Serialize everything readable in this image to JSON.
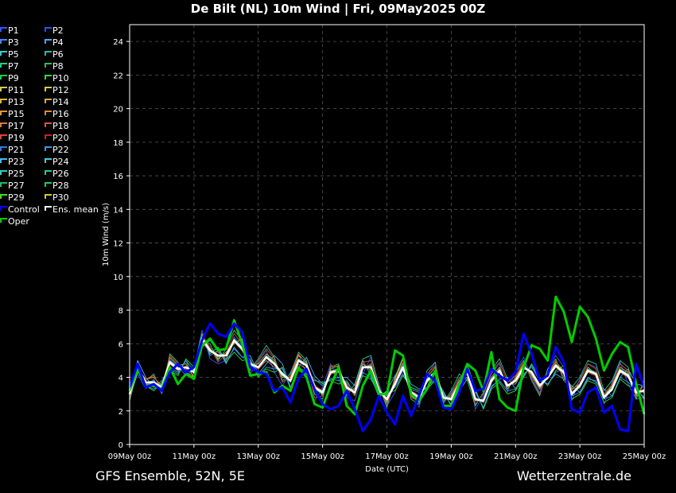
{
  "title": "De Bilt  (NL)  10m Wind | Fri, 09May2025 00Z",
  "footer": {
    "left": "GFS Ensemble, 52N, 5E",
    "right": "Wetterzentrale.de"
  },
  "colors": {
    "background": "#000000",
    "grid": "#555555",
    "control": "#0000ff",
    "oper": "#00cc00",
    "mean": "#ffffff"
  },
  "legend": [
    {
      "label": "P1",
      "color": "#3355ff"
    },
    {
      "label": "P2",
      "color": "#2255ff"
    },
    {
      "label": "P3",
      "color": "#4488ff"
    },
    {
      "label": "P4",
      "color": "#44aaff"
    },
    {
      "label": "P5",
      "color": "#33cccc"
    },
    {
      "label": "P6",
      "color": "#22bbaa"
    },
    {
      "label": "P7",
      "color": "#22cc88"
    },
    {
      "label": "P8",
      "color": "#33bb55"
    },
    {
      "label": "P9",
      "color": "#22cc44"
    },
    {
      "label": "P10",
      "color": "#33dd33"
    },
    {
      "label": "P11",
      "color": "#cccc55"
    },
    {
      "label": "P12",
      "color": "#ddcc33"
    },
    {
      "label": "P13",
      "color": "#ddbb33"
    },
    {
      "label": "P14",
      "color": "#ddaa33"
    },
    {
      "label": "P15",
      "color": "#dd9944"
    },
    {
      "label": "P16",
      "color": "#dd8844"
    },
    {
      "label": "P17",
      "color": "#dd7744"
    },
    {
      "label": "P18",
      "color": "#dd5533"
    },
    {
      "label": "P19",
      "color": "#dd4433"
    },
    {
      "label": "P20",
      "color": "#cc2222"
    },
    {
      "label": "P21",
      "color": "#3377dd"
    },
    {
      "label": "P22",
      "color": "#3399ee"
    },
    {
      "label": "P23",
      "color": "#44bbee"
    },
    {
      "label": "P24",
      "color": "#44ccdd"
    },
    {
      "label": "P25",
      "color": "#33ccbb"
    },
    {
      "label": "P26",
      "color": "#22cc99"
    },
    {
      "label": "P27",
      "color": "#22bb66"
    },
    {
      "label": "P28",
      "color": "#22cc55"
    },
    {
      "label": "P29",
      "color": "#44dd22"
    },
    {
      "label": "P30",
      "color": "#cccc22"
    },
    {
      "label": "Control",
      "color": "#0000ff"
    },
    {
      "label": "Ens. mean",
      "color": "#ffffff"
    },
    {
      "label": "Oper",
      "color": "#00cc00"
    }
  ],
  "chart_data": {
    "type": "line",
    "title": "De Bilt  (NL)  10m Wind | Fri, 09May2025 00Z",
    "xlabel": "Date (UTC)",
    "ylabel": "10m Wind (m/s)",
    "ylim": [
      0,
      25
    ],
    "yticks": [
      0,
      2,
      4,
      6,
      8,
      10,
      12,
      14,
      16,
      18,
      20,
      22,
      24
    ],
    "xlim_hours": [
      0,
      384
    ],
    "x_step_hours": 6,
    "xticks": [
      {
        "hours": 0,
        "label": "09May 00z"
      },
      {
        "hours": 48,
        "label": "11May 00z"
      },
      {
        "hours": 96,
        "label": "13May 00z"
      },
      {
        "hours": 144,
        "label": "15May 00z"
      },
      {
        "hours": 192,
        "label": "17May 00z"
      },
      {
        "hours": 240,
        "label": "19May 00z"
      },
      {
        "hours": 288,
        "label": "21May 00z"
      },
      {
        "hours": 336,
        "label": "23May 00z"
      },
      {
        "hours": 384,
        "label": "25May 00z"
      }
    ],
    "grid": true,
    "legend_position": "left",
    "series": [
      {
        "name": "Ens. mean",
        "color": "#ffffff",
        "width": 2.6,
        "values": [
          3.0,
          4.6,
          3.7,
          3.7,
          3.4,
          4.9,
          4.5,
          4.6,
          4.3,
          6.3,
          5.6,
          5.3,
          5.3,
          6.2,
          5.7,
          4.8,
          4.6,
          5.2,
          4.8,
          4.2,
          3.8,
          5.0,
          4.7,
          3.4,
          3.1,
          4.3,
          4.4,
          3.4,
          3.1,
          4.6,
          4.6,
          3.2,
          2.7,
          3.6,
          4.6,
          3.1,
          2.8,
          3.8,
          4.3,
          2.8,
          2.7,
          3.6,
          4.3,
          2.7,
          2.6,
          3.8,
          4.4,
          3.5,
          3.8,
          4.6,
          4.3,
          3.5,
          4.0,
          4.7,
          4.3,
          3.0,
          3.5,
          4.4,
          4.2,
          2.8,
          3.3,
          4.4,
          4.1,
          3.1,
          3.2
        ]
      },
      {
        "name": "Oper",
        "color": "#00cc00",
        "width": 3,
        "values": [
          3.2,
          4.5,
          3.5,
          3.5,
          3.3,
          4.6,
          3.6,
          4.2,
          3.9,
          5.9,
          6.3,
          5.6,
          5.7,
          7.4,
          6.0,
          4.1,
          4.2,
          4.3,
          3.1,
          3.5,
          3.2,
          4.6,
          4.0,
          2.4,
          2.2,
          3.5,
          4.6,
          2.3,
          1.8,
          3.5,
          4.4,
          3.0,
          3.0,
          5.6,
          5.3,
          3.0,
          2.6,
          3.3,
          4.4,
          2.3,
          2.3,
          3.6,
          4.8,
          4.4,
          3.2,
          5.5,
          2.7,
          2.2,
          2.0,
          4.6,
          5.9,
          5.7,
          5.0,
          8.8,
          7.9,
          6.1,
          8.2,
          7.6,
          6.3,
          4.4,
          5.4,
          6.1,
          5.8,
          3.6,
          1.8
        ]
      },
      {
        "name": "Control",
        "color": "#0000ff",
        "width": 3,
        "values": [
          3.4,
          4.8,
          3.4,
          3.6,
          3.2,
          4.3,
          4.8,
          4.3,
          4.6,
          6.2,
          7.2,
          6.6,
          6.4,
          7.2,
          6.7,
          4.6,
          4.3,
          4.2,
          3.2,
          3.4,
          2.5,
          3.9,
          4.5,
          3.3,
          2.4,
          2.1,
          2.3,
          3.2,
          2.1,
          0.8,
          1.5,
          2.9,
          1.9,
          1.2,
          2.9,
          1.7,
          2.9,
          4.2,
          3.8,
          2.2,
          2.1,
          3.1,
          4.5,
          3.2,
          3.3,
          4.5,
          4.1,
          3.8,
          4.3,
          6.6,
          5.4,
          3.8,
          4.1,
          5.8,
          4.9,
          2.1,
          1.9,
          3.1,
          3.4,
          1.9,
          2.3,
          0.9,
          0.8,
          4.8,
          3.4
        ]
      },
      {
        "name": "P1",
        "color": "#3355ff",
        "width": 0.9,
        "values": [
          2.8,
          4.2,
          3.3,
          3.9,
          3.0,
          5.1,
          4.6,
          4.1,
          4.5,
          6.8,
          5.1,
          4.8,
          5.0,
          6.4,
          5.9,
          4.2,
          4.9,
          5.6,
          4.3,
          3.5,
          4.3,
          5.4,
          4.2,
          2.6,
          3.4,
          4.8,
          3.9,
          2.8,
          2.6,
          4.2,
          5.2,
          3.6,
          2.3,
          3.1,
          4.4,
          3.3,
          2.2,
          4.1,
          4.9,
          2.4,
          3.1,
          3.9,
          4.6,
          2.1,
          2.9,
          4.2,
          4.8,
          3.1,
          4.4,
          5.2,
          4.0,
          3.1,
          4.5,
          5.3,
          4.6,
          2.6,
          3.9,
          4.8,
          4.6,
          2.4,
          3.7,
          4.9,
          3.6,
          2.7,
          2.8
        ]
      },
      {
        "name": "P4",
        "color": "#44aaff",
        "width": 0.9,
        "values": [
          3.2,
          5.0,
          4.0,
          3.4,
          3.8,
          4.6,
          4.3,
          5.0,
          3.9,
          5.8,
          6.2,
          5.7,
          4.8,
          5.8,
          5.2,
          5.3,
          4.2,
          4.8,
          5.3,
          4.8,
          3.4,
          4.6,
          5.2,
          4.1,
          3.6,
          3.9,
          4.0,
          4.0,
          3.5,
          5.0,
          4.1,
          2.8,
          3.2,
          4.1,
          4.8,
          3.6,
          3.3,
          3.4,
          3.9,
          3.2,
          2.3,
          3.2,
          3.9,
          3.1,
          2.2,
          3.4,
          3.9,
          4.0,
          3.3,
          4.1,
          4.7,
          3.9,
          3.6,
          4.2,
          3.9,
          3.5,
          3.1,
          4.0,
          3.7,
          3.3,
          2.9,
          4.0,
          4.5,
          3.6,
          3.5
        ]
      },
      {
        "name": "P7",
        "color": "#22cc88",
        "width": 0.9,
        "values": [
          2.6,
          4.4,
          3.8,
          4.2,
          3.1,
          5.4,
          4.9,
          4.3,
          4.0,
          6.1,
          6.0,
          5.0,
          5.7,
          6.8,
          6.2,
          4.5,
          5.1,
          5.9,
          5.2,
          3.8,
          4.2,
          5.5,
          5.0,
          3.0,
          2.7,
          4.6,
          4.8,
          2.9,
          3.6,
          5.1,
          5.3,
          3.5,
          2.2,
          4.0,
          5.2,
          2.7,
          2.4,
          4.4,
          4.9,
          2.5,
          3.2,
          4.2,
          3.8,
          2.3,
          3.1,
          4.4,
          5.1,
          3.9,
          4.3,
          5.0,
          3.8,
          2.9,
          4.5,
          5.1,
          3.8,
          3.4,
          4.0,
          5.0,
          4.8,
          3.2,
          3.8,
          5.0,
          4.6,
          2.7,
          3.8
        ]
      },
      {
        "name": "P10",
        "color": "#33dd33",
        "width": 0.9,
        "values": [
          3.3,
          4.9,
          3.5,
          3.2,
          3.7,
          4.4,
          4.1,
          5.1,
          4.6,
          6.6,
          5.4,
          5.8,
          4.9,
          5.5,
          5.0,
          5.1,
          4.0,
          4.5,
          4.3,
          4.6,
          3.3,
          4.4,
          4.2,
          3.8,
          3.7,
          3.8,
          3.6,
          3.8,
          3.0,
          4.1,
          3.9,
          3.0,
          3.1,
          3.2,
          4.1,
          3.4,
          3.2,
          3.3,
          3.8,
          3.1,
          2.3,
          3.2,
          4.8,
          3.3,
          2.1,
          3.3,
          3.7,
          3.0,
          3.2,
          4.0,
          4.8,
          4.0,
          3.5,
          4.4,
          4.7,
          2.7,
          3.0,
          3.8,
          3.6,
          2.5,
          2.8,
          3.9,
          3.5,
          3.4,
          2.7
        ]
      },
      {
        "name": "P13",
        "color": "#ddbb33",
        "width": 0.9,
        "values": [
          2.9,
          4.3,
          3.9,
          4.0,
          3.5,
          5.2,
          4.7,
          4.8,
          4.0,
          6.4,
          5.7,
          5.1,
          5.5,
          6.0,
          6.3,
          4.7,
          4.8,
          5.4,
          5.0,
          4.0,
          4.0,
          5.3,
          4.9,
          3.6,
          2.9,
          4.5,
          4.7,
          3.2,
          3.3,
          4.8,
          4.4,
          3.3,
          2.5,
          3.9,
          5.1,
          2.9,
          2.5,
          4.0,
          4.6,
          2.6,
          2.9,
          3.8,
          4.0,
          2.6,
          2.7,
          4.0,
          4.6,
          3.3,
          4.0,
          4.8,
          4.1,
          3.3,
          4.2,
          4.9,
          4.4,
          3.3,
          3.6,
          4.6,
          4.2,
          2.9,
          3.5,
          4.6,
          4.3,
          2.9,
          3.6
        ]
      },
      {
        "name": "P16",
        "color": "#dd8844",
        "width": 0.9,
        "values": [
          3.1,
          4.7,
          3.6,
          3.6,
          3.2,
          4.8,
          4.4,
          4.5,
          4.5,
          6.1,
          5.5,
          5.5,
          5.1,
          6.1,
          5.6,
          4.9,
          4.5,
          5.0,
          4.6,
          4.3,
          3.7,
          4.8,
          4.5,
          3.5,
          3.2,
          4.2,
          4.3,
          3.6,
          2.9,
          4.5,
          4.8,
          3.1,
          2.9,
          3.5,
          4.5,
          3.2,
          2.9,
          3.7,
          4.2,
          2.9,
          2.6,
          3.5,
          4.4,
          2.8,
          2.5,
          3.7,
          4.3,
          3.6,
          3.6,
          4.5,
          4.4,
          3.6,
          3.9,
          4.6,
          4.2,
          3.1,
          3.4,
          4.3,
          4.1,
          2.9,
          3.2,
          4.3,
          4.0,
          3.2,
          3.1
        ]
      },
      {
        "name": "P19",
        "color": "#dd4433",
        "width": 0.9,
        "values": [
          2.7,
          4.5,
          3.9,
          4.1,
          3.3,
          5.3,
          4.8,
          4.2,
          4.2,
          6.5,
          5.8,
          4.9,
          5.4,
          6.6,
          6.0,
          4.4,
          5.0,
          5.7,
          5.1,
          3.7,
          4.1,
          5.4,
          4.8,
          2.8,
          2.9,
          4.7,
          4.6,
          3.0,
          3.4,
          4.9,
          5.0,
          3.4,
          2.4,
          3.8,
          4.9,
          2.8,
          2.6,
          4.2,
          4.7,
          2.6,
          3.0,
          4.0,
          4.2,
          2.4,
          3.0,
          4.3,
          4.9,
          3.7,
          4.1,
          4.9,
          3.9,
          3.0,
          4.3,
          5.0,
          4.0,
          3.2,
          3.8,
          4.8,
          4.5,
          3.0,
          3.6,
          4.8,
          4.4,
          2.8,
          3.6
        ]
      },
      {
        "name": "P22",
        "color": "#3399ee",
        "width": 0.9,
        "values": [
          3.3,
          4.8,
          3.5,
          3.3,
          3.6,
          4.5,
          4.2,
          5.0,
          4.4,
          6.4,
          5.3,
          5.6,
          5.0,
          5.7,
          5.2,
          5.0,
          4.1,
          4.6,
          4.5,
          4.5,
          3.4,
          4.5,
          4.4,
          3.9,
          3.5,
          3.9,
          3.8,
          3.7,
          3.1,
          4.3,
          4.0,
          3.0,
          3.0,
          3.4,
          4.2,
          3.3,
          3.1,
          3.4,
          3.9,
          3.0,
          2.4,
          3.3,
          4.6,
          3.2,
          2.2,
          3.5,
          3.8,
          3.2,
          3.3,
          4.2,
          4.6,
          3.8,
          3.6,
          4.3,
          4.5,
          2.9,
          3.1,
          3.9,
          3.8,
          2.7,
          2.9,
          4.0,
          3.7,
          3.3,
          2.8
        ]
      },
      {
        "name": "P25",
        "color": "#33ccbb",
        "width": 0.9,
        "values": [
          2.9,
          4.4,
          3.7,
          3.8,
          3.3,
          5.0,
          4.6,
          4.4,
          4.3,
          6.2,
          5.7,
          5.2,
          5.3,
          6.3,
          5.8,
          4.7,
          4.6,
          5.3,
          4.9,
          4.1,
          3.8,
          5.1,
          4.8,
          3.3,
          3.0,
          4.4,
          4.5,
          3.3,
          3.1,
          4.6,
          4.7,
          3.2,
          2.6,
          3.7,
          4.8,
          3.0,
          2.7,
          3.9,
          4.4,
          2.7,
          2.8,
          3.7,
          4.2,
          2.6,
          2.7,
          3.9,
          4.5,
          3.5,
          3.9,
          4.7,
          4.2,
          3.4,
          4.1,
          4.8,
          4.3,
          3.1,
          3.6,
          4.5,
          4.3,
          2.9,
          3.4,
          4.5,
          4.2,
          3.0,
          3.3
        ]
      }
    ]
  }
}
